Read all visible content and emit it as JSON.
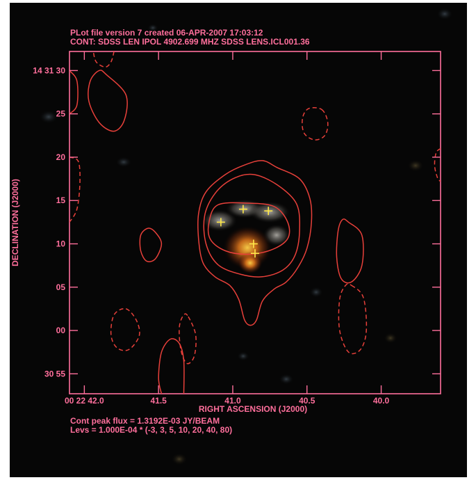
{
  "header": {
    "line1": "PLot file version 7  created 06-APR-2007 17:03:12",
    "line2": "CONT: SDSS LEN  IPOL  4902.699 MHZ  SDSS LENS.ICL001.36"
  },
  "footer": {
    "line1": "Cont peak flux =  1.3192E-03 JY/BEAM",
    "line2": "Levs = 1.000E-04 * (-3, 3, 5, 10, 20, 40, 80)"
  },
  "colors": {
    "plot_text": "#ff6f9c",
    "contour": "#e8403a",
    "marker": "#ffe94a",
    "background": "#060606"
  },
  "chart_data": {
    "type": "contour",
    "title": "",
    "xlabel": "RIGHT ASCENSION (J2000)",
    "ylabel": "DECLINATION (J2000)",
    "x_ticks": [
      {
        "value": 42.0,
        "label": "00 22 42.0"
      },
      {
        "value": 41.5,
        "label": "41.5"
      },
      {
        "value": 41.0,
        "label": "41.0"
      },
      {
        "value": 40.5,
        "label": "40.5"
      },
      {
        "value": 40.0,
        "label": "40.0"
      }
    ],
    "y_ticks": [
      {
        "value": 30,
        "label": "14 31 30"
      },
      {
        "value": 25,
        "label": "25"
      },
      {
        "value": 20,
        "label": "20"
      },
      {
        "value": 15,
        "label": "15"
      },
      {
        "value": 10,
        "label": "10"
      },
      {
        "value": 5,
        "label": "05"
      },
      {
        "value": 0,
        "label": "00"
      },
      {
        "value": -5,
        "label": "30 55"
      }
    ],
    "xlim": [
      42.1,
      39.6
    ],
    "ylim": [
      -7.3,
      32.2
    ],
    "contour_levels": [
      -3,
      3,
      5,
      10,
      20,
      40,
      80
    ],
    "level_unit": "1.000E-04 JY/BEAM",
    "peak_flux": "1.3192E-03 JY/BEAM",
    "sources": [
      {
        "ra": 41.08,
        "dec": 12.5
      },
      {
        "ra": 40.93,
        "dec": 14.0
      },
      {
        "ra": 40.76,
        "dec": 13.8
      },
      {
        "ra": 40.86,
        "dec": 10.0
      },
      {
        "ra": 40.85,
        "dec": 8.9
      }
    ],
    "contours": [
      {
        "name": "contour-outer",
        "style": "solid",
        "points": [
          [
            40.8,
            19.6
          ],
          [
            40.7,
            18.8
          ],
          [
            40.55,
            17.5
          ],
          [
            40.48,
            15.2
          ],
          [
            40.47,
            12.5
          ],
          [
            40.5,
            9.5
          ],
          [
            40.56,
            7.3
          ],
          [
            40.64,
            5.6
          ],
          [
            40.72,
            4.8
          ],
          [
            40.8,
            3.4
          ],
          [
            40.84,
            1.2
          ],
          [
            40.88,
            0.6
          ],
          [
            40.92,
            1.2
          ],
          [
            40.96,
            3.6
          ],
          [
            41.02,
            5.2
          ],
          [
            41.12,
            6.2
          ],
          [
            41.2,
            7.8
          ],
          [
            41.23,
            10.5
          ],
          [
            41.23,
            13.5
          ],
          [
            41.18,
            16.0
          ],
          [
            41.05,
            18.0
          ],
          [
            40.92,
            19.1
          ]
        ]
      },
      {
        "name": "contour-middle",
        "style": "solid",
        "points": [
          [
            40.86,
            18.0
          ],
          [
            40.7,
            16.8
          ],
          [
            40.57,
            14.6
          ],
          [
            40.55,
            11.5
          ],
          [
            40.58,
            8.7
          ],
          [
            40.66,
            7.0
          ],
          [
            40.8,
            6.2
          ],
          [
            40.95,
            6.5
          ],
          [
            41.1,
            7.6
          ],
          [
            41.18,
            10.0
          ],
          [
            41.19,
            13.2
          ],
          [
            41.12,
            15.8
          ],
          [
            41.0,
            17.5
          ]
        ]
      },
      {
        "name": "contour-inner",
        "style": "solid",
        "points": [
          [
            41.1,
            14.5
          ],
          [
            40.9,
            14.7
          ],
          [
            40.72,
            14.3
          ],
          [
            40.63,
            12.5
          ],
          [
            40.63,
            10.6
          ],
          [
            40.74,
            9.3
          ],
          [
            40.9,
            8.8
          ],
          [
            41.05,
            9.2
          ],
          [
            41.15,
            10.5
          ],
          [
            41.16,
            12.5
          ]
        ]
      },
      {
        "name": "contour-topleft",
        "style": "solid",
        "points": [
          [
            41.85,
            29.5
          ],
          [
            41.72,
            27.2
          ],
          [
            41.73,
            24.3
          ],
          [
            41.8,
            23.0
          ],
          [
            41.9,
            24.0
          ],
          [
            41.97,
            26.5
          ],
          [
            41.96,
            28.8
          ],
          [
            41.9,
            30.0
          ]
        ]
      },
      {
        "name": "contour-leftmid",
        "style": "solid",
        "points": [
          [
            41.52,
            11.3
          ],
          [
            41.48,
            10.0
          ],
          [
            41.52,
            8.3
          ],
          [
            41.58,
            8.0
          ],
          [
            41.62,
            9.2
          ],
          [
            41.62,
            11.0
          ],
          [
            41.57,
            11.8
          ]
        ]
      },
      {
        "name": "contour-right",
        "style": "solid",
        "points": [
          [
            40.22,
            12.5
          ],
          [
            40.13,
            11.0
          ],
          [
            40.13,
            7.5
          ],
          [
            40.2,
            5.6
          ],
          [
            40.27,
            6.0
          ],
          [
            40.3,
            8.5
          ],
          [
            40.29,
            11.5
          ],
          [
            40.26,
            12.8
          ]
        ]
      },
      {
        "name": "contour-bottom",
        "style": "solid",
        "points": [
          [
            41.33,
            -7.3
          ],
          [
            41.33,
            -3.5
          ],
          [
            41.36,
            -1.5
          ],
          [
            41.42,
            -1.0
          ],
          [
            41.48,
            -2.5
          ],
          [
            41.5,
            -5.5
          ],
          [
            41.48,
            -7.3
          ]
        ]
      },
      {
        "name": "contour-left-edge",
        "style": "solid",
        "points": [
          [
            42.1,
            30.0
          ],
          [
            42.05,
            28.8
          ],
          [
            42.05,
            26.0
          ],
          [
            42.1,
            25.0
          ]
        ]
      },
      {
        "name": "contour-right-top",
        "style": "dashed",
        "points": [
          [
            40.4,
            25.5
          ],
          [
            40.36,
            24.0
          ],
          [
            40.38,
            22.5
          ],
          [
            40.45,
            22.0
          ],
          [
            40.52,
            22.8
          ],
          [
            40.53,
            24.5
          ],
          [
            40.49,
            25.6
          ]
        ]
      },
      {
        "name": "contour-left-dashed",
        "style": "dashed",
        "points": [
          [
            42.1,
            20.0
          ],
          [
            42.04,
            19.5
          ],
          [
            42.03,
            17.0
          ],
          [
            42.05,
            14.0
          ],
          [
            42.1,
            12.5
          ]
        ]
      },
      {
        "name": "contour-bottomleft",
        "style": "dashed",
        "points": [
          [
            41.72,
            2.5
          ],
          [
            41.65,
            1.2
          ],
          [
            41.63,
            -0.6
          ],
          [
            41.7,
            -2.2
          ],
          [
            41.78,
            -2.0
          ],
          [
            41.82,
            -0.5
          ],
          [
            41.8,
            1.8
          ]
        ]
      },
      {
        "name": "contour-bottommid",
        "style": "dashed",
        "points": [
          [
            41.3,
            1.6
          ],
          [
            41.25,
            -0.5
          ],
          [
            41.26,
            -3.0
          ],
          [
            41.31,
            -3.8
          ],
          [
            41.35,
            -2.2
          ],
          [
            41.36,
            0.4
          ],
          [
            41.33,
            1.8
          ]
        ]
      },
      {
        "name": "contour-bottomright",
        "style": "dashed",
        "points": [
          [
            40.2,
            5.2
          ],
          [
            40.12,
            3.8
          ],
          [
            40.1,
            0.0
          ],
          [
            40.14,
            -2.2
          ],
          [
            40.22,
            -2.5
          ],
          [
            40.28,
            0.0
          ],
          [
            40.28,
            3.6
          ],
          [
            40.24,
            5.2
          ]
        ]
      },
      {
        "name": "contour-top-dashed",
        "style": "dashed",
        "points": [
          [
            41.8,
            32.2
          ],
          [
            41.82,
            31.0
          ],
          [
            41.86,
            30.4
          ],
          [
            41.92,
            31.0
          ],
          [
            41.94,
            32.2
          ]
        ]
      },
      {
        "name": "contour-right-edge-dashed",
        "style": "dashed",
        "points": [
          [
            39.6,
            21.0
          ],
          [
            39.63,
            20.5
          ],
          [
            39.64,
            19.0
          ],
          [
            39.62,
            17.6
          ],
          [
            39.6,
            17.2
          ]
        ]
      }
    ]
  }
}
